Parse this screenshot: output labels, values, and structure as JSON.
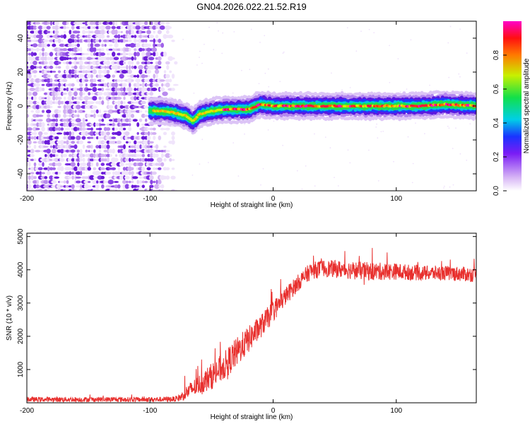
{
  "title": "GN04.2026.022.21.52.R19",
  "chart_data": [
    {
      "type": "heatmap",
      "name": "spectrogram",
      "xlabel": "Height of straight line (km)",
      "ylabel": "Frequency (Hz)",
      "xlim": [
        -200,
        165
      ],
      "ylim": [
        -50,
        50
      ],
      "xticks": [
        "-200",
        "-100",
        "0",
        "100"
      ],
      "yticks": [
        "40",
        "20",
        "0",
        "-20",
        "-40"
      ],
      "noise_region_x": [
        -200,
        -80
      ],
      "ridge": {
        "start_x": -100,
        "end_x": 165,
        "freq_hz": [
          [
            -100,
            -3
          ],
          [
            -90,
            -3
          ],
          [
            -80,
            -4
          ],
          [
            -70,
            -6
          ],
          [
            -65,
            -9
          ],
          [
            -60,
            -5
          ],
          [
            -50,
            -3
          ],
          [
            -40,
            -2
          ],
          [
            -20,
            -2
          ],
          [
            -10,
            1
          ],
          [
            0,
            0
          ],
          [
            20,
            0
          ],
          [
            40,
            0
          ],
          [
            60,
            0
          ],
          [
            80,
            0
          ],
          [
            100,
            0
          ],
          [
            120,
            0
          ],
          [
            140,
            1
          ],
          [
            165,
            0
          ]
        ]
      },
      "colorbar": {
        "label": "Normalized spectral amplitude",
        "range": [
          0,
          1
        ],
        "ticks": [
          "0.0",
          "0.2",
          "0.4",
          "0.6",
          "0.8"
        ]
      }
    },
    {
      "type": "line",
      "name": "snr",
      "xlabel": "Height of straight line (km)",
      "ylabel": "SNR (10 * v/v)",
      "xlim": [
        -200,
        165
      ],
      "ylim": [
        0,
        5100
      ],
      "xticks": [
        "-200",
        "-100",
        "0",
        "100"
      ],
      "yticks": [
        "1000",
        "2000",
        "3000",
        "4000",
        "5000"
      ],
      "color": "#e8302e",
      "envelope": {
        "x": [
          -200,
          -100,
          -80,
          -75,
          -70,
          -60,
          -50,
          -40,
          -30,
          -20,
          -10,
          0,
          10,
          20,
          30,
          40,
          60,
          80,
          100,
          120,
          140,
          165
        ],
        "base": [
          100,
          100,
          110,
          170,
          320,
          550,
          800,
          1100,
          1500,
          1900,
          2300,
          2750,
          3200,
          3600,
          3950,
          4050,
          4000,
          3950,
          3950,
          3900,
          3900,
          3850
        ],
        "amp": [
          150,
          150,
          160,
          250,
          450,
          600,
          800,
          850,
          900,
          800,
          700,
          650,
          550,
          500,
          520,
          500,
          550,
          550,
          500,
          450,
          450,
          450
        ]
      }
    }
  ]
}
